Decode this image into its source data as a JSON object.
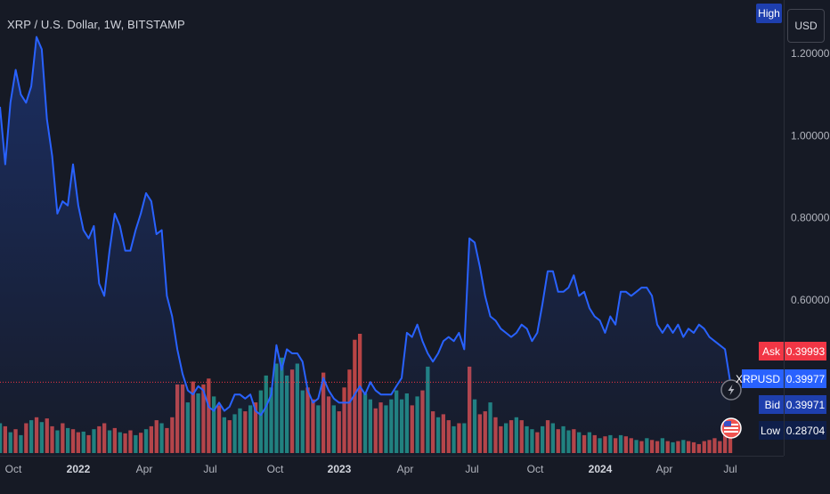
{
  "header": {
    "symbol_title": "XRP / U.S. Dollar, 1W, BITSTAMP"
  },
  "currency_button": "USD",
  "high_tag": "High",
  "price_tags": {
    "ask": {
      "label": "Ask",
      "value": "0.39993",
      "color": "#f23645"
    },
    "current": {
      "label": "XRPUSD",
      "value": "0.39977",
      "color": "#2962ff"
    },
    "bid": {
      "label": "Bid",
      "value": "0.39971",
      "color": "#1e3fae"
    },
    "low": {
      "label": "Low",
      "value": "0.28704",
      "color": "#0e1e4a"
    }
  },
  "colors": {
    "line": "#2962ff",
    "volume_up": "#26a69a",
    "volume_down": "#ef5350",
    "background": "#161a25",
    "axis_text": "#b2b5be"
  },
  "icons": [
    "lightning-icon",
    "us-flag-icon"
  ],
  "chart_data": {
    "type": "area",
    "title": "XRP / U.S. Dollar, 1W, BITSTAMP",
    "xlabel": "",
    "ylabel": "",
    "x_ticks": [
      "Oct",
      "2022",
      "Apr",
      "Jul",
      "Oct",
      "2023",
      "Apr",
      "Jul",
      "Oct",
      "2024",
      "Apr",
      "Jul"
    ],
    "y_ticks": [
      "1.20000",
      "1.00000",
      "0.80000",
      "0.60000"
    ],
    "y_tick_values": [
      1.2,
      1.0,
      0.8,
      0.6
    ],
    "ylim": [
      0.3,
      1.25
    ],
    "grid": false,
    "current_price": 0.39977,
    "series": [
      {
        "values": [
          1.07,
          0.93,
          1.08,
          1.16,
          1.1,
          1.08,
          1.12,
          1.24,
          1.21,
          1.04,
          0.95,
          0.81,
          0.84,
          0.83,
          0.93,
          0.83,
          0.77,
          0.75,
          0.78,
          0.64,
          0.61,
          0.72,
          0.81,
          0.78,
          0.72,
          0.72,
          0.77,
          0.81,
          0.86,
          0.84,
          0.76,
          0.77,
          0.61,
          0.56,
          0.48,
          0.42,
          0.38,
          0.37,
          0.39,
          0.38,
          0.34,
          0.33,
          0.35,
          0.33,
          0.34,
          0.37,
          0.37,
          0.36,
          0.37,
          0.33,
          0.32,
          0.34,
          0.37,
          0.49,
          0.43,
          0.48,
          0.47,
          0.47,
          0.45,
          0.38,
          0.35,
          0.36,
          0.41,
          0.38,
          0.36,
          0.35,
          0.35,
          0.35,
          0.37,
          0.39,
          0.37,
          0.4,
          0.38,
          0.37,
          0.37,
          0.37,
          0.39,
          0.41,
          0.52,
          0.51,
          0.54,
          0.5,
          0.47,
          0.45,
          0.47,
          0.5,
          0.51,
          0.5,
          0.52,
          0.48,
          0.75,
          0.74,
          0.68,
          0.61,
          0.56,
          0.55,
          0.53,
          0.52,
          0.51,
          0.52,
          0.54,
          0.53,
          0.5,
          0.52,
          0.59,
          0.67,
          0.67,
          0.62,
          0.62,
          0.63,
          0.66,
          0.61,
          0.62,
          0.58,
          0.56,
          0.55,
          0.52,
          0.56,
          0.54,
          0.62,
          0.62,
          0.61,
          0.62,
          0.63,
          0.63,
          0.61,
          0.54,
          0.52,
          0.54,
          0.52,
          0.54,
          0.51,
          0.53,
          0.52,
          0.54,
          0.53,
          0.51,
          0.5,
          0.49,
          0.48,
          0.4
        ]
      }
    ],
    "volume": {
      "values": [
        0.5,
        0.45,
        0.35,
        0.4,
        0.3,
        0.5,
        0.55,
        0.6,
        0.52,
        0.58,
        0.45,
        0.38,
        0.5,
        0.42,
        0.4,
        0.35,
        0.36,
        0.3,
        0.4,
        0.45,
        0.5,
        0.38,
        0.42,
        0.35,
        0.33,
        0.38,
        0.3,
        0.34,
        0.4,
        0.45,
        0.55,
        0.5,
        0.42,
        0.6,
        1.15,
        1.15,
        0.85,
        1.2,
        1.0,
        1.15,
        1.25,
        0.95,
        0.8,
        0.6,
        0.55,
        0.65,
        0.75,
        0.7,
        0.8,
        0.85,
        1.05,
        1.3,
        1.1,
        1.5,
        1.6,
        1.3,
        1.4,
        1.5,
        1.05,
        1.1,
        0.9,
        0.8,
        1.35,
        0.95,
        0.8,
        0.7,
        1.1,
        1.4,
        1.9,
        2.0,
        1.0,
        0.9,
        0.75,
        0.85,
        0.8,
        0.9,
        1.05,
        0.9,
        1.0,
        0.8,
        0.95,
        1.05,
        1.45,
        0.7,
        0.6,
        0.65,
        0.55,
        0.45,
        0.5,
        0.5,
        1.45,
        0.9,
        0.65,
        0.7,
        0.85,
        0.6,
        0.45,
        0.5,
        0.55,
        0.6,
        0.55,
        0.45,
        0.4,
        0.35,
        0.45,
        0.55,
        0.5,
        0.4,
        0.45,
        0.38,
        0.4,
        0.35,
        0.3,
        0.35,
        0.3,
        0.25,
        0.28,
        0.3,
        0.25,
        0.3,
        0.28,
        0.25,
        0.22,
        0.2,
        0.25,
        0.22,
        0.2,
        0.25,
        0.2,
        0.18,
        0.2,
        0.22,
        0.2,
        0.18,
        0.15,
        0.2,
        0.22,
        0.25,
        0.2,
        0.3,
        0.32
      ],
      "direction": [
        "up",
        "down",
        "up",
        "down",
        "up",
        "down",
        "up",
        "down",
        "up",
        "down",
        "down",
        "up",
        "down",
        "up",
        "down",
        "down",
        "up",
        "down",
        "up",
        "down",
        "down",
        "up",
        "down",
        "up",
        "down",
        "down",
        "up",
        "down",
        "up",
        "down",
        "down",
        "up",
        "down",
        "down",
        "down",
        "down",
        "up",
        "down",
        "up",
        "down",
        "down",
        "up",
        "down",
        "up",
        "down",
        "up",
        "up",
        "down",
        "up",
        "down",
        "up",
        "up",
        "up",
        "up",
        "up",
        "up",
        "down",
        "up",
        "up",
        "down",
        "down",
        "up",
        "down",
        "down",
        "up",
        "down",
        "down",
        "down",
        "down",
        "down",
        "up",
        "up",
        "down",
        "down",
        "up",
        "up",
        "up",
        "up",
        "up",
        "down",
        "up",
        "down",
        "up",
        "down",
        "up",
        "down",
        "down",
        "up",
        "down",
        "up",
        "down",
        "up",
        "down",
        "down",
        "up",
        "down",
        "down",
        "up",
        "down",
        "up",
        "down",
        "up",
        "up",
        "down",
        "up",
        "down",
        "up",
        "down",
        "up",
        "up",
        "down",
        "up",
        "down",
        "up",
        "down",
        "up",
        "down",
        "up",
        "down",
        "up",
        "down",
        "down",
        "up",
        "down",
        "up",
        "down",
        "down",
        "up",
        "down",
        "up",
        "down",
        "up",
        "down",
        "down",
        "down",
        "down",
        "down",
        "down",
        "down",
        "down",
        "down"
      ]
    }
  }
}
